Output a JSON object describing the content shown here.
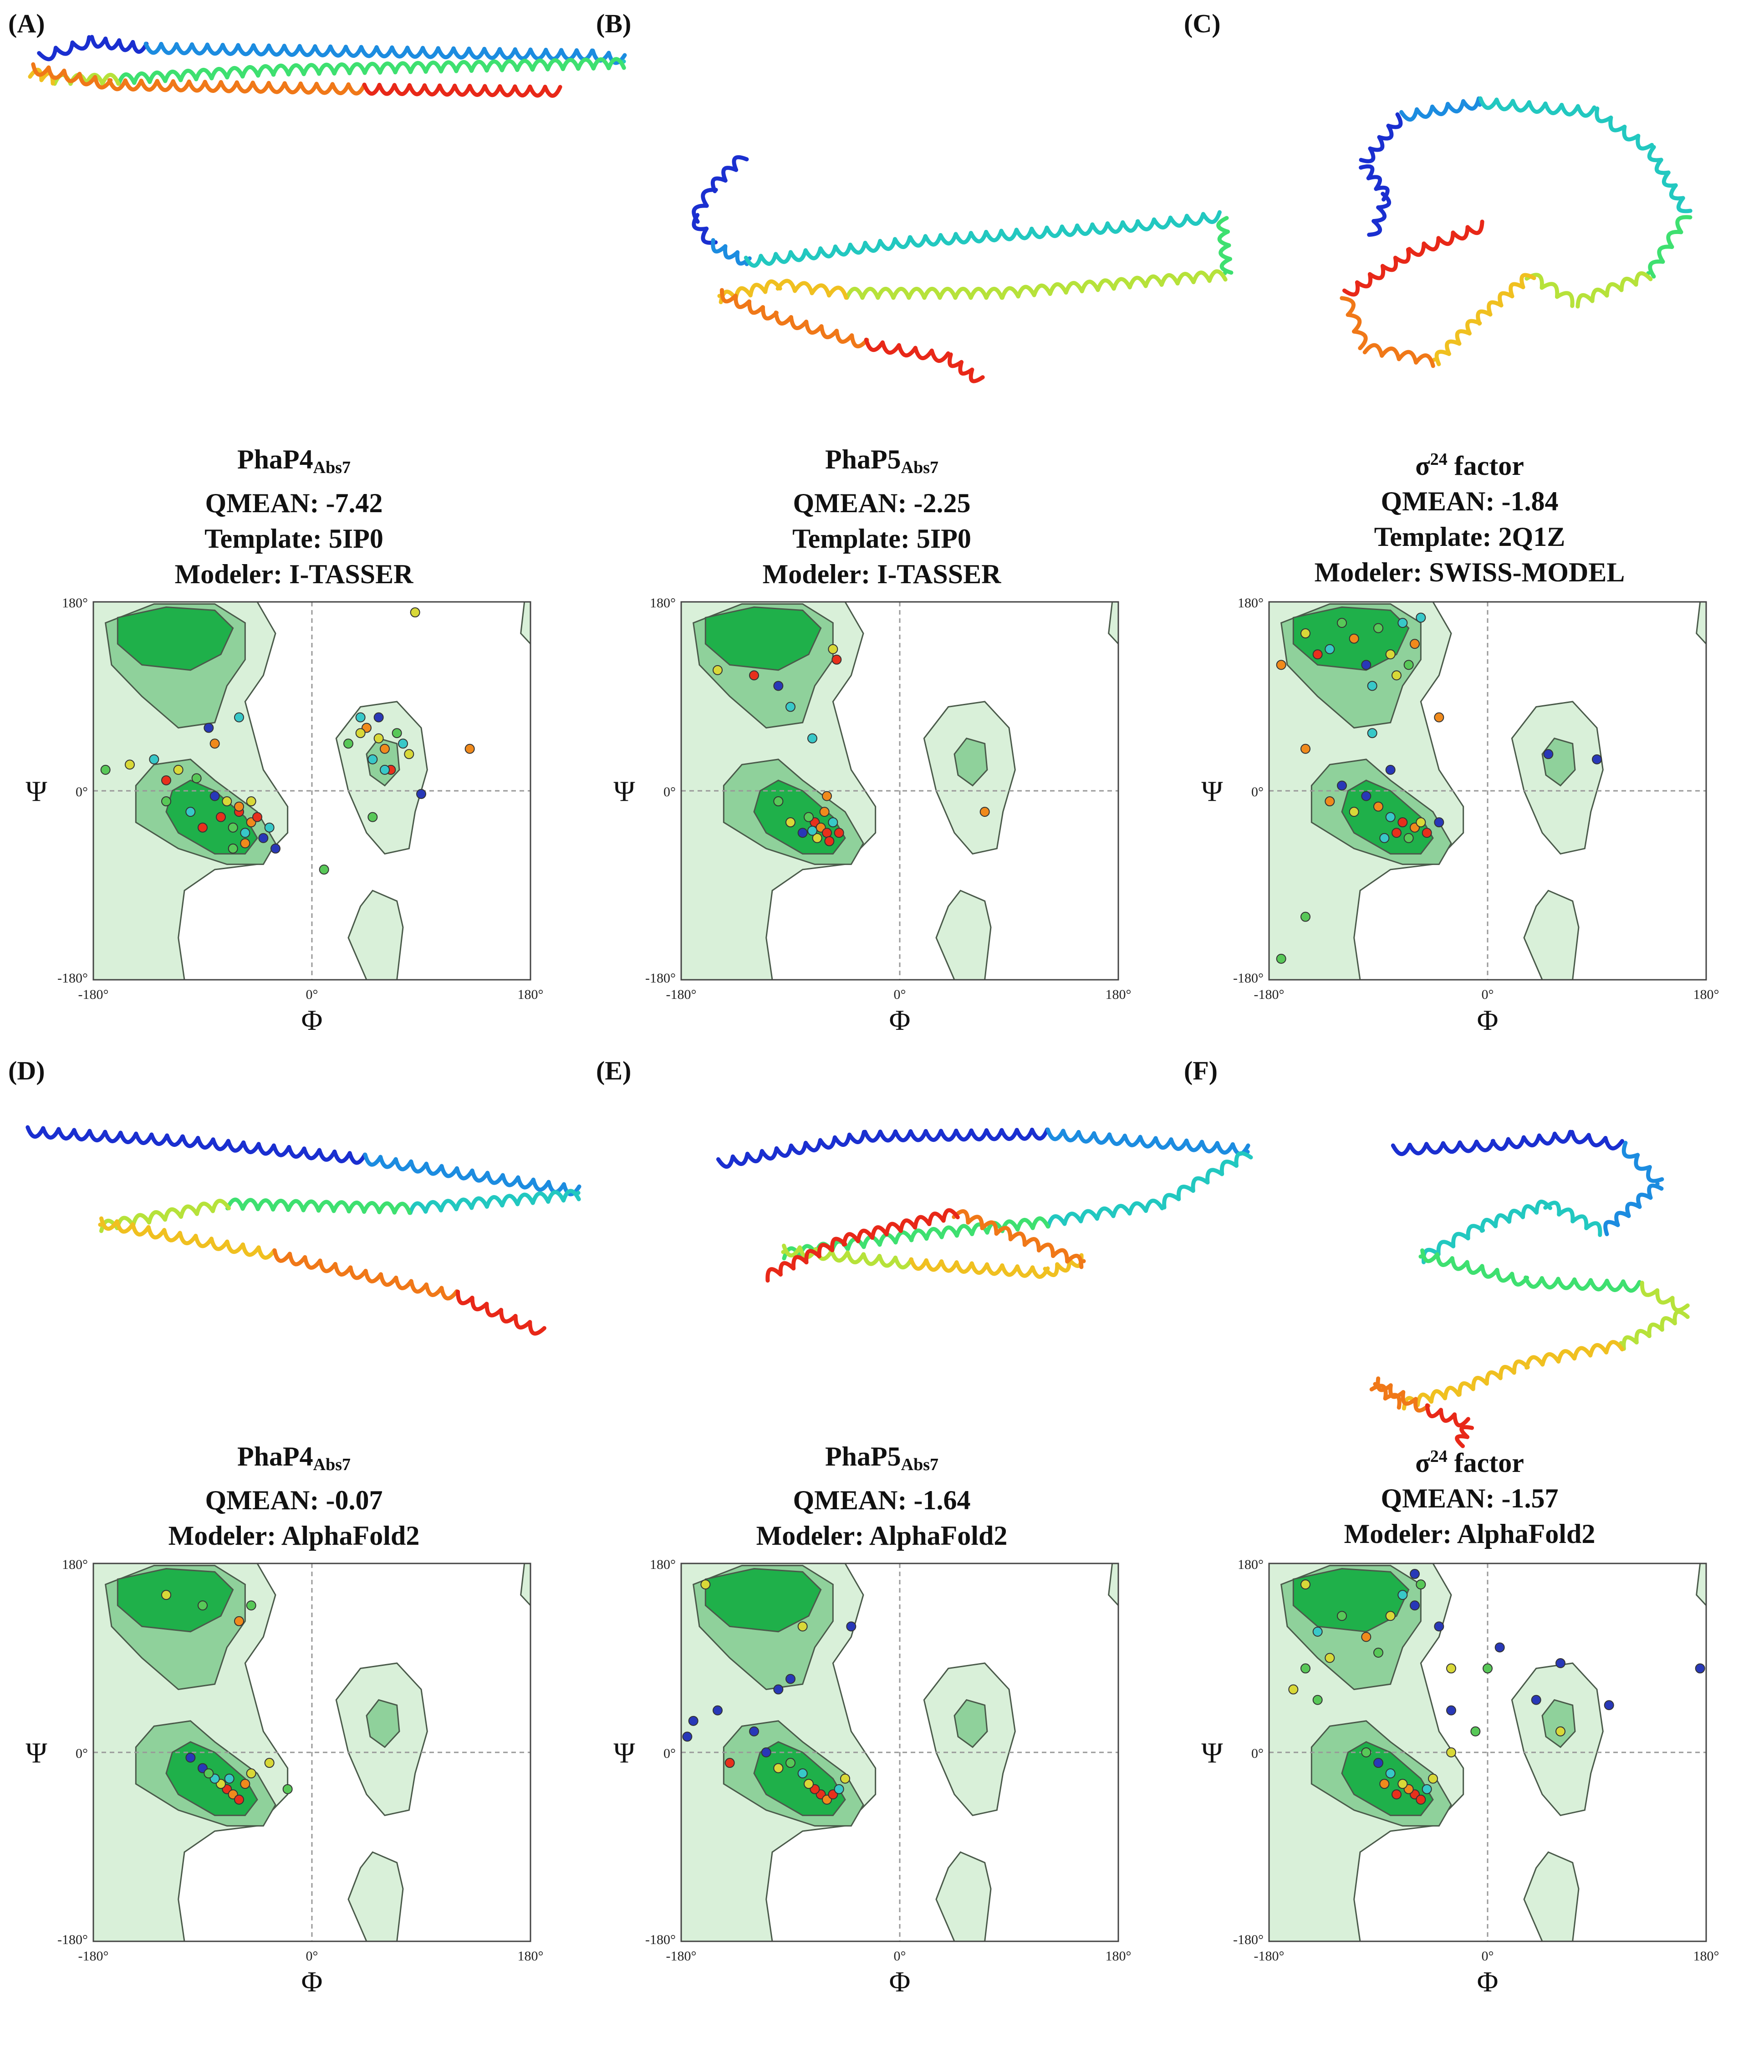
{
  "panels": [
    {
      "letter": "(A)",
      "protein_base": "PhaP4",
      "protein_sub": "Abs7",
      "protein_sup": "",
      "protein_tail": "",
      "qmean": "QMEAN: -7.42",
      "template": "Template: 5IP0",
      "modeler": "Modeler: I-TASSER",
      "style": "long-A",
      "points": [
        [
          -95,
          12,
          "g"
        ],
        [
          -60,
          -20,
          "r"
        ],
        [
          -50,
          -30,
          "o"
        ],
        [
          -70,
          -10,
          "y"
        ],
        [
          -55,
          -40,
          "c"
        ],
        [
          -80,
          -5,
          "b"
        ],
        [
          -45,
          -25,
          "r"
        ],
        [
          -65,
          -35,
          "g"
        ],
        [
          -60,
          -15,
          "o"
        ],
        [
          -75,
          -25,
          "r"
        ],
        [
          -50,
          -10,
          "y"
        ],
        [
          -40,
          -45,
          "b"
        ],
        [
          -110,
          20,
          "y"
        ],
        [
          -120,
          -10,
          "g"
        ],
        [
          -100,
          -20,
          "c"
        ],
        [
          -90,
          -35,
          "r"
        ],
        [
          -55,
          -50,
          "o"
        ],
        [
          -65,
          -55,
          "g"
        ],
        [
          -35,
          -35,
          "c"
        ],
        [
          -30,
          -55,
          "b"
        ],
        [
          -130,
          30,
          "c"
        ],
        [
          -150,
          25,
          "y"
        ],
        [
          -80,
          45,
          "o"
        ],
        [
          -60,
          70,
          "c"
        ],
        [
          -170,
          20,
          "g"
        ],
        [
          -120,
          10,
          "r"
        ],
        [
          -85,
          60,
          "b"
        ],
        [
          40,
          70,
          "c"
        ],
        [
          55,
          50,
          "y"
        ],
        [
          60,
          40,
          "o"
        ],
        [
          70,
          55,
          "g"
        ],
        [
          50,
          30,
          "c"
        ],
        [
          65,
          20,
          "r"
        ],
        [
          45,
          60,
          "o"
        ],
        [
          80,
          35,
          "y"
        ],
        [
          30,
          45,
          "g"
        ],
        [
          75,
          45,
          "c"
        ],
        [
          55,
          70,
          "b"
        ],
        [
          90,
          -3,
          "b"
        ],
        [
          130,
          40,
          "o"
        ],
        [
          85,
          170,
          "y"
        ],
        [
          50,
          -25,
          "g"
        ],
        [
          10,
          -75,
          "g"
        ],
        [
          60,
          20,
          "c"
        ],
        [
          40,
          55,
          "y"
        ]
      ]
    },
    {
      "letter": "(B)",
      "protein_base": "PhaP5",
      "protein_sub": "Abs7",
      "protein_sup": "",
      "protein_tail": "",
      "qmean": "QMEAN: -2.25",
      "template": "Template: 5IP0",
      "modeler": "Modeler: I-TASSER",
      "style": "loop-B",
      "points": [
        [
          -70,
          -30,
          "r"
        ],
        [
          -65,
          -35,
          "o"
        ],
        [
          -60,
          -40,
          "r"
        ],
        [
          -68,
          -45,
          "y"
        ],
        [
          -75,
          -25,
          "g"
        ],
        [
          -55,
          -30,
          "c"
        ],
        [
          -62,
          -20,
          "o"
        ],
        [
          -58,
          -48,
          "r"
        ],
        [
          -80,
          -40,
          "b"
        ],
        [
          -90,
          -30,
          "y"
        ],
        [
          -50,
          -40,
          "r"
        ],
        [
          -72,
          -38,
          "c"
        ],
        [
          -100,
          -10,
          "g"
        ],
        [
          -60,
          -5,
          "o"
        ],
        [
          -150,
          115,
          "y"
        ],
        [
          -120,
          110,
          "r"
        ],
        [
          -100,
          100,
          "b"
        ],
        [
          -55,
          135,
          "y"
        ],
        [
          -52,
          125,
          "r"
        ],
        [
          -90,
          80,
          "c"
        ],
        [
          -72,
          50,
          "c"
        ],
        [
          70,
          -20,
          "o"
        ]
      ]
    },
    {
      "letter": "(C)",
      "protein_base": "σ",
      "protein_sub": "",
      "protein_sup": "24",
      "protein_tail": " factor",
      "qmean": "QMEAN: -1.84",
      "template": "Template: 2Q1Z",
      "modeler": "Modeler: SWISS-MODEL",
      "style": "globular",
      "points": [
        [
          -150,
          150,
          "y"
        ],
        [
          -130,
          135,
          "c"
        ],
        [
          -110,
          145,
          "o"
        ],
        [
          -90,
          155,
          "g"
        ],
        [
          -80,
          130,
          "y"
        ],
        [
          -70,
          160,
          "c"
        ],
        [
          -60,
          140,
          "o"
        ],
        [
          -100,
          120,
          "b"
        ],
        [
          -120,
          160,
          "g"
        ],
        [
          -140,
          130,
          "r"
        ],
        [
          -75,
          110,
          "y"
        ],
        [
          -55,
          165,
          "c"
        ],
        [
          -65,
          120,
          "g"
        ],
        [
          -95,
          100,
          "c"
        ],
        [
          -170,
          120,
          "o"
        ],
        [
          -70,
          -30,
          "r"
        ],
        [
          -60,
          -35,
          "o"
        ],
        [
          -75,
          -40,
          "r"
        ],
        [
          -55,
          -30,
          "y"
        ],
        [
          -80,
          -25,
          "c"
        ],
        [
          -65,
          -45,
          "g"
        ],
        [
          -90,
          -15,
          "o"
        ],
        [
          -100,
          -5,
          "b"
        ],
        [
          -110,
          -20,
          "y"
        ],
        [
          -50,
          -40,
          "r"
        ],
        [
          -40,
          -30,
          "b"
        ],
        [
          -85,
          -45,
          "c"
        ],
        [
          -120,
          5,
          "b"
        ],
        [
          -130,
          -10,
          "o"
        ],
        [
          -80,
          20,
          "b"
        ],
        [
          -95,
          55,
          "c"
        ],
        [
          -40,
          70,
          "o"
        ],
        [
          -150,
          40,
          "o"
        ],
        [
          50,
          35,
          "b"
        ],
        [
          90,
          30,
          "b"
        ],
        [
          -150,
          -120,
          "g"
        ],
        [
          -170,
          -160,
          "g"
        ]
      ]
    },
    {
      "letter": "(D)",
      "protein_base": "PhaP4",
      "protein_sub": "Abs7",
      "protein_sup": "",
      "protein_tail": "",
      "qmean": "QMEAN: -0.07",
      "template": "",
      "modeler": "Modeler: AlphaFold2",
      "style": "long-D",
      "points": [
        [
          -70,
          -35,
          "r"
        ],
        [
          -65,
          -40,
          "o"
        ],
        [
          -75,
          -30,
          "y"
        ],
        [
          -60,
          -45,
          "r"
        ],
        [
          -80,
          -25,
          "c"
        ],
        [
          -90,
          -15,
          "b"
        ],
        [
          -100,
          -5,
          "b"
        ],
        [
          -85,
          -20,
          "g"
        ],
        [
          -55,
          -30,
          "o"
        ],
        [
          -68,
          -25,
          "c"
        ],
        [
          -50,
          -20,
          "y"
        ],
        [
          -35,
          -10,
          "y"
        ],
        [
          -20,
          -35,
          "g"
        ],
        [
          -120,
          150,
          "y"
        ],
        [
          -90,
          140,
          "g"
        ],
        [
          -60,
          125,
          "o"
        ],
        [
          -50,
          140,
          "g"
        ]
      ]
    },
    {
      "letter": "(E)",
      "protein_base": "PhaP5",
      "protein_sub": "Abs7",
      "protein_sup": "",
      "protein_tail": "",
      "qmean": "QMEAN: -1.64",
      "template": "",
      "modeler": "Modeler: AlphaFold2",
      "style": "loop-E",
      "points": [
        [
          -65,
          -40,
          "r"
        ],
        [
          -60,
          -45,
          "o"
        ],
        [
          -70,
          -35,
          "r"
        ],
        [
          -55,
          -40,
          "r"
        ],
        [
          -75,
          -30,
          "y"
        ],
        [
          -80,
          -20,
          "c"
        ],
        [
          -90,
          -10,
          "g"
        ],
        [
          -100,
          -15,
          "y"
        ],
        [
          -110,
          0,
          "b"
        ],
        [
          -120,
          20,
          "b"
        ],
        [
          -140,
          -10,
          "r"
        ],
        [
          -150,
          40,
          "b"
        ],
        [
          -170,
          30,
          "b"
        ],
        [
          -175,
          15,
          "b"
        ],
        [
          -100,
          60,
          "b"
        ],
        [
          -90,
          70,
          "b"
        ],
        [
          -50,
          -35,
          "c"
        ],
        [
          -45,
          -25,
          "y"
        ],
        [
          -160,
          160,
          "y"
        ],
        [
          -80,
          120,
          "y"
        ],
        [
          -40,
          120,
          "b"
        ]
      ]
    },
    {
      "letter": "(F)",
      "protein_base": "σ",
      "protein_sub": "",
      "protein_sup": "24",
      "protein_tail": " factor",
      "qmean": "QMEAN: -1.57",
      "template": "",
      "modeler": "Modeler: AlphaFold2",
      "style": "globular-F",
      "points": [
        [
          -60,
          -40,
          "r"
        ],
        [
          -65,
          -35,
          "o"
        ],
        [
          -55,
          -45,
          "r"
        ],
        [
          -70,
          -30,
          "y"
        ],
        [
          -75,
          -40,
          "r"
        ],
        [
          -80,
          -20,
          "c"
        ],
        [
          -90,
          -10,
          "b"
        ],
        [
          -100,
          0,
          "g"
        ],
        [
          -50,
          -35,
          "c"
        ],
        [
          -45,
          -25,
          "y"
        ],
        [
          -85,
          -30,
          "o"
        ],
        [
          -60,
          170,
          "b"
        ],
        [
          -55,
          160,
          "g"
        ],
        [
          -70,
          150,
          "c"
        ],
        [
          -80,
          130,
          "y"
        ],
        [
          -100,
          110,
          "o"
        ],
        [
          -120,
          130,
          "g"
        ],
        [
          -140,
          115,
          "c"
        ],
        [
          -150,
          160,
          "y"
        ],
        [
          -60,
          140,
          "b"
        ],
        [
          -40,
          120,
          "b"
        ],
        [
          -130,
          90,
          "y"
        ],
        [
          -150,
          80,
          "g"
        ],
        [
          -160,
          60,
          "y"
        ],
        [
          -140,
          50,
          "g"
        ],
        [
          -90,
          95,
          "g"
        ],
        [
          -30,
          80,
          "y"
        ],
        [
          -30,
          40,
          "b"
        ],
        [
          -10,
          20,
          "g"
        ],
        [
          -30,
          0,
          "y"
        ],
        [
          0,
          80,
          "g"
        ],
        [
          40,
          50,
          "b"
        ],
        [
          60,
          20,
          "y"
        ],
        [
          60,
          85,
          "b"
        ],
        [
          100,
          45,
          "b"
        ],
        [
          175,
          80,
          "b"
        ],
        [
          10,
          100,
          "b"
        ]
      ]
    }
  ],
  "axes": {
    "x_label": "Φ",
    "y_label": "Ψ",
    "x_ticks": [
      "-180°",
      "0°",
      "180°"
    ],
    "y_ticks": [
      "180°",
      "0°",
      "-180°"
    ]
  },
  "colors": {
    "r": "#e8301c",
    "o": "#f08a1c",
    "y": "#d8d838",
    "g": "#58c858",
    "c": "#38c8c8",
    "b": "#2838b8",
    "region_light": "#d9f0d9",
    "region_mid": "#8fd19b",
    "region_core": "#1fb04a",
    "ribbon_gradient": [
      "#1a2fd0",
      "#1c8ce0",
      "#22c8c0",
      "#3ee070",
      "#b6e23a",
      "#f0c020",
      "#f07818",
      "#e82818"
    ]
  }
}
